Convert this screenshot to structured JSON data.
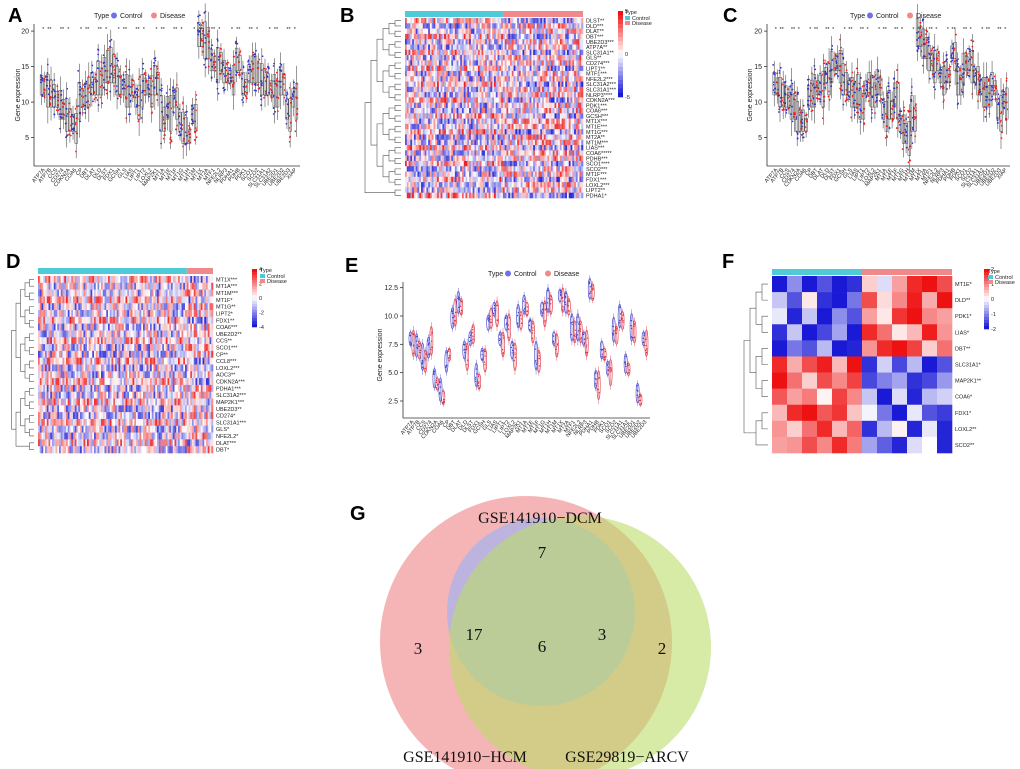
{
  "colors": {
    "control": "#4ecbd6",
    "disease": "#f08a8a",
    "control_point": "#3333cc",
    "disease_point": "#ee2222",
    "heat_high": "#ee1111",
    "heat_low": "#1a1ad6",
    "heat_mid": "#ffffff",
    "venn_hcm": "#f2a0a3",
    "venn_dcm": "#a4b4f0",
    "venn_arcv": "#bcdc6a"
  },
  "legend": {
    "type_label": "Type",
    "control_label": "Control",
    "disease_label": "Disease"
  },
  "panels": {
    "A": {
      "letter": "A",
      "chart_data": {
        "type": "box",
        "ylabel": "Gene expression",
        "ylim": [
          1,
          21
        ],
        "yticks": [
          5,
          10,
          15,
          20
        ],
        "categories": [
          "ATP7A",
          "ATP7B",
          "CCS",
          "CD274",
          "CDKN2A",
          "COA6",
          "CP",
          "DBT",
          "DLAT",
          "DLD",
          "DLST",
          "FDX1",
          "GCSH",
          "GLS",
          "LIAS",
          "LIPT1",
          "LIPT2",
          "LOXL2",
          "MAP2K1",
          "MT1A",
          "MT1E",
          "MT1F",
          "MT1G",
          "MT1H",
          "MT1M",
          "MT1X",
          "MT2A",
          "MTF1",
          "NFE2L2",
          "NLRP3",
          "PDHA1",
          "PDHB",
          "PDK1",
          "SCO1",
          "SCO2",
          "SLC31A1",
          "SLC31A2",
          "UBE2D1",
          "UBE2D2",
          "UBE2D3",
          "XIAP"
        ],
        "control_medians": [
          12.4,
          11.6,
          10.9,
          9.6,
          8.2,
          7.1,
          10.2,
          11.0,
          12.6,
          13.4,
          14.5,
          15.2,
          13.0,
          12.1,
          11.5,
          10.4,
          11.6,
          12.0,
          13.1,
          8.4,
          9.2,
          10.6,
          7.2,
          6.0,
          8.6,
          19.5,
          18.7,
          15.9,
          15.2,
          14.3,
          13.6,
          16.0,
          12.6,
          14.0,
          14.6,
          13.2,
          12.5,
          11.6,
          13.0,
          9.0,
          10.6
        ],
        "disease_medians": [
          12.1,
          11.2,
          10.4,
          9.0,
          7.5,
          6.3,
          10.6,
          11.4,
          12.1,
          12.9,
          15.0,
          14.7,
          12.4,
          11.6,
          12.0,
          10.0,
          12.2,
          11.5,
          12.6,
          7.6,
          8.4,
          9.8,
          6.4,
          5.2,
          7.8,
          19.1,
          18.3,
          15.4,
          15.7,
          13.8,
          13.1,
          15.5,
          12.1,
          14.6,
          14.1,
          12.7,
          12.0,
          11.1,
          12.5,
          8.2,
          10.1
        ]
      }
    },
    "B": {
      "letter": "B",
      "chart_data": {
        "type": "heatmap",
        "legend_ticks": [
          "5",
          "0",
          "-5"
        ],
        "column_groups": [
          {
            "name": "Control",
            "n": 55
          },
          {
            "name": "Disease",
            "n": 45
          }
        ],
        "rows": [
          "DLST**",
          "DLD***",
          "DLAT**",
          "DBT***",
          "UBE2D3***",
          "ATP7A**",
          "SLC31A1**",
          "GLS**",
          "CD274***",
          "LIPT1**",
          "MTF1***",
          "NFE2L2***",
          "SLC31A2***",
          "SLC31A1***",
          "NLRP3****",
          "CDKN2A***",
          "PDK1***",
          "COA6***",
          "GCSH***",
          "MT1X***",
          "MT1E***",
          "MT1G***",
          "MT2A**",
          "MT1M***",
          "LIAS***",
          "COA6*****",
          "PDHB***",
          "SCO1****",
          "SCO2***",
          "MT1F***",
          "FDX1***",
          "LOXL2***",
          "LIPT2**",
          "PDHA1*"
        ]
      }
    },
    "C": {
      "letter": "C",
      "chart_data": {
        "type": "box",
        "ylabel": "Gene expression",
        "ylim": [
          1,
          21
        ],
        "yticks": [
          5,
          10,
          15,
          20
        ],
        "categories": [
          "ATP7A",
          "ATP7B",
          "CCS",
          "CD274",
          "CDKN2A",
          "COA6",
          "CP",
          "DBT",
          "DLAT",
          "DLD",
          "DLST",
          "FDX1",
          "GCSH",
          "GLS",
          "LIAS",
          "LIPT1",
          "LIPT2",
          "LOXL2",
          "MAP2K1",
          "MT1A",
          "MT1E",
          "MT1F",
          "MT1G",
          "MT1H",
          "MT1M",
          "MT1X",
          "MT2A",
          "MTF1",
          "NFE2L2",
          "NLRP3",
          "PDHA1",
          "PDHB",
          "PDK1",
          "SCO1",
          "SCO2",
          "SLC31A1",
          "SLC31A2",
          "UBE2D1",
          "UBE2D2",
          "UBE2D3",
          "XIAP"
        ],
        "control_medians": [
          12.6,
          11.4,
          10.8,
          10.0,
          8.0,
          7.4,
          10.8,
          11.6,
          12.4,
          13.8,
          14.9,
          15.6,
          13.2,
          12.0,
          11.0,
          9.8,
          12.0,
          11.5,
          12.8,
          8.9,
          9.6,
          11.0,
          7.0,
          5.6,
          8.4,
          19.8,
          18.2,
          16.2,
          15.0,
          13.6,
          14.2,
          17.0,
          13.0,
          14.8,
          15.6,
          13.6,
          12.0,
          11.4,
          12.6,
          9.0,
          10.4
        ],
        "disease_medians": [
          12.2,
          11.0,
          10.3,
          9.4,
          7.4,
          6.8,
          11.2,
          12.0,
          11.8,
          13.2,
          15.3,
          15.0,
          12.6,
          11.4,
          11.6,
          9.4,
          12.6,
          11.0,
          12.2,
          8.0,
          8.9,
          10.2,
          6.2,
          4.9,
          7.6,
          19.2,
          17.6,
          15.6,
          15.6,
          13.0,
          13.6,
          16.4,
          12.4,
          15.4,
          15.0,
          13.0,
          11.4,
          10.8,
          12.0,
          8.4,
          9.8
        ]
      }
    },
    "D": {
      "letter": "D",
      "chart_data": {
        "type": "heatmap",
        "legend_title": "Type",
        "legend_ticks": [
          "4",
          "2",
          "0",
          "-2",
          "-4"
        ],
        "column_groups": [
          {
            "name": "Control",
            "n": 85
          },
          {
            "name": "Disease",
            "n": 15
          }
        ],
        "rows": [
          "MT1X***",
          "MT1A***",
          "MT1M***",
          "MT1F*",
          "MT1G**",
          "LIPT2*",
          "FDX1**",
          "COA6***",
          "UBE2D2**",
          "CCS**",
          "SCO1***",
          "CP**",
          "CCL8***",
          "LOXL2***",
          "AOC3**",
          "CDKN2A***",
          "PDHA1***",
          "SLC31A2***",
          "MAP2K1***",
          "UBE2D3**",
          "CD274*",
          "SLC31A1***",
          "GLS*",
          "NFE2L2*",
          "DLAT***",
          "DBT*"
        ]
      }
    },
    "E": {
      "letter": "E",
      "chart_data": {
        "type": "violin",
        "ylabel": "Gene expression",
        "ylim": [
          1,
          13
        ],
        "yticks": [
          2.5,
          5.0,
          7.5,
          10.0,
          12.5
        ],
        "categories": [
          "ATP7A",
          "ATP7B",
          "CCS",
          "CD274",
          "CDKN2A",
          "COA6",
          "CP",
          "DBT",
          "DLAT",
          "DLD",
          "DLST",
          "FDX1",
          "GCSH",
          "GLS",
          "LIAS",
          "LIPT1",
          "LIPT2",
          "LOXL2",
          "MAP2K1",
          "MT1A",
          "MT1E",
          "MT1F",
          "MT1G",
          "MT1H",
          "MT1M",
          "MT1X",
          "MT2A",
          "MTF1",
          "NFE2L2",
          "NLRP3",
          "PDHA1",
          "PDHB",
          "PDK1",
          "SCO1",
          "SCO2",
          "SLC31A1",
          "SLC31A2",
          "UBE2D1",
          "UBE2D2",
          "UBE2D3"
        ],
        "control_medians": [
          8.0,
          7.4,
          6.4,
          7.2,
          4.5,
          3.5,
          6.0,
          9.8,
          11.2,
          7.0,
          8.0,
          4.8,
          6.6,
          9.4,
          10.6,
          8.0,
          9.4,
          7.0,
          10.0,
          11.0,
          9.2,
          6.5,
          10.6,
          11.4,
          8.0,
          11.8,
          11.2,
          9.0,
          9.0,
          8.0,
          12.4,
          4.4,
          7.0,
          5.4,
          8.8,
          10.0,
          5.8,
          9.0,
          3.2,
          8.0
        ],
        "disease_medians": [
          7.6,
          7.0,
          6.0,
          7.8,
          4.0,
          2.8,
          6.6,
          10.3,
          10.8,
          6.4,
          8.4,
          4.2,
          6.1,
          9.8,
          10.2,
          7.5,
          9.0,
          6.4,
          9.6,
          10.6,
          8.6,
          6.0,
          10.2,
          11.0,
          7.4,
          11.4,
          10.8,
          8.6,
          8.6,
          7.6,
          12.1,
          3.9,
          6.6,
          5.0,
          8.3,
          9.6,
          5.3,
          8.6,
          2.6,
          7.6
        ]
      }
    },
    "F": {
      "letter": "F",
      "chart_data": {
        "type": "heatmap",
        "legend_ticks": [
          "2",
          "1",
          "0",
          "-1",
          "-2"
        ],
        "column_groups": [
          {
            "name": "Control",
            "n": 6
          },
          {
            "name": "Disease",
            "n": 6
          }
        ],
        "rows": [
          "MT1E*",
          "DLD**",
          "PDK1*",
          "LIAS*",
          "DBT**",
          "SLC31A1*",
          "MAP2K1**",
          "COA6*",
          "FDX1*",
          "LOXL2**",
          "SCO2**"
        ],
        "values": [
          [
            -2.0,
            -1.0,
            -2.0,
            -1.5,
            -2.0,
            -1.8,
            0.4,
            -0.3,
            0.8,
            1.8,
            2.0,
            1.5
          ],
          [
            -0.5,
            -1.5,
            0.2,
            -1.8,
            -2.0,
            -1.2,
            1.5,
            0.3,
            1.0,
            1.9,
            0.7,
            2.0
          ],
          [
            -0.2,
            -1.9,
            -0.5,
            -2.0,
            -1.0,
            -1.5,
            0.8,
            0.2,
            1.7,
            2.0,
            1.0,
            0.8
          ],
          [
            -1.8,
            -0.5,
            -2.0,
            -1.6,
            -0.8,
            -2.0,
            1.8,
            1.2,
            0.2,
            0.6,
            1.9,
            0.9
          ],
          [
            -2.0,
            -1.2,
            -1.5,
            -0.6,
            -2.0,
            -1.9,
            0.9,
            1.8,
            2.0,
            1.6,
            0.4,
            1.2
          ],
          [
            1.8,
            0.7,
            1.5,
            1.9,
            0.6,
            2.0,
            -1.8,
            -0.4,
            -1.6,
            -0.6,
            -2.0,
            -1.5
          ],
          [
            2.0,
            1.2,
            0.4,
            1.5,
            1.0,
            1.6,
            -1.6,
            -1.1,
            -0.8,
            -1.8,
            -1.6,
            -0.9
          ],
          [
            1.4,
            0.8,
            1.1,
            0.1,
            1.6,
            1.0,
            -0.5,
            -2.0,
            -0.3,
            -1.9,
            -0.6,
            -0.4
          ],
          [
            0.6,
            1.8,
            2.0,
            1.4,
            1.7,
            0.5,
            -0.1,
            -1.2,
            -2.0,
            -0.2,
            -1.5,
            -1.7
          ],
          [
            0.9,
            0.4,
            1.2,
            1.8,
            0.6,
            1.3,
            -1.8,
            -0.6,
            0.1,
            -1.9,
            -0.2,
            -1.9
          ],
          [
            0.8,
            0.9,
            1.5,
            1.0,
            1.8,
            1.1,
            -0.8,
            -1.4,
            -1.9,
            -0.3,
            0.0,
            -1.9
          ]
        ]
      }
    },
    "G": {
      "letter": "G",
      "chart_data": {
        "type": "venn",
        "sets": [
          "GSE141910−HCM",
          "GSE141910−DCM",
          "GSE29819−ARCV"
        ],
        "regions": {
          "HCM_only": 3,
          "DCM_only": 7,
          "ARCV_only": 2,
          "HCM_DCM": 17,
          "DCM_ARCV": 3,
          "HCM_DCM_ARCV": 6
        }
      }
    }
  }
}
